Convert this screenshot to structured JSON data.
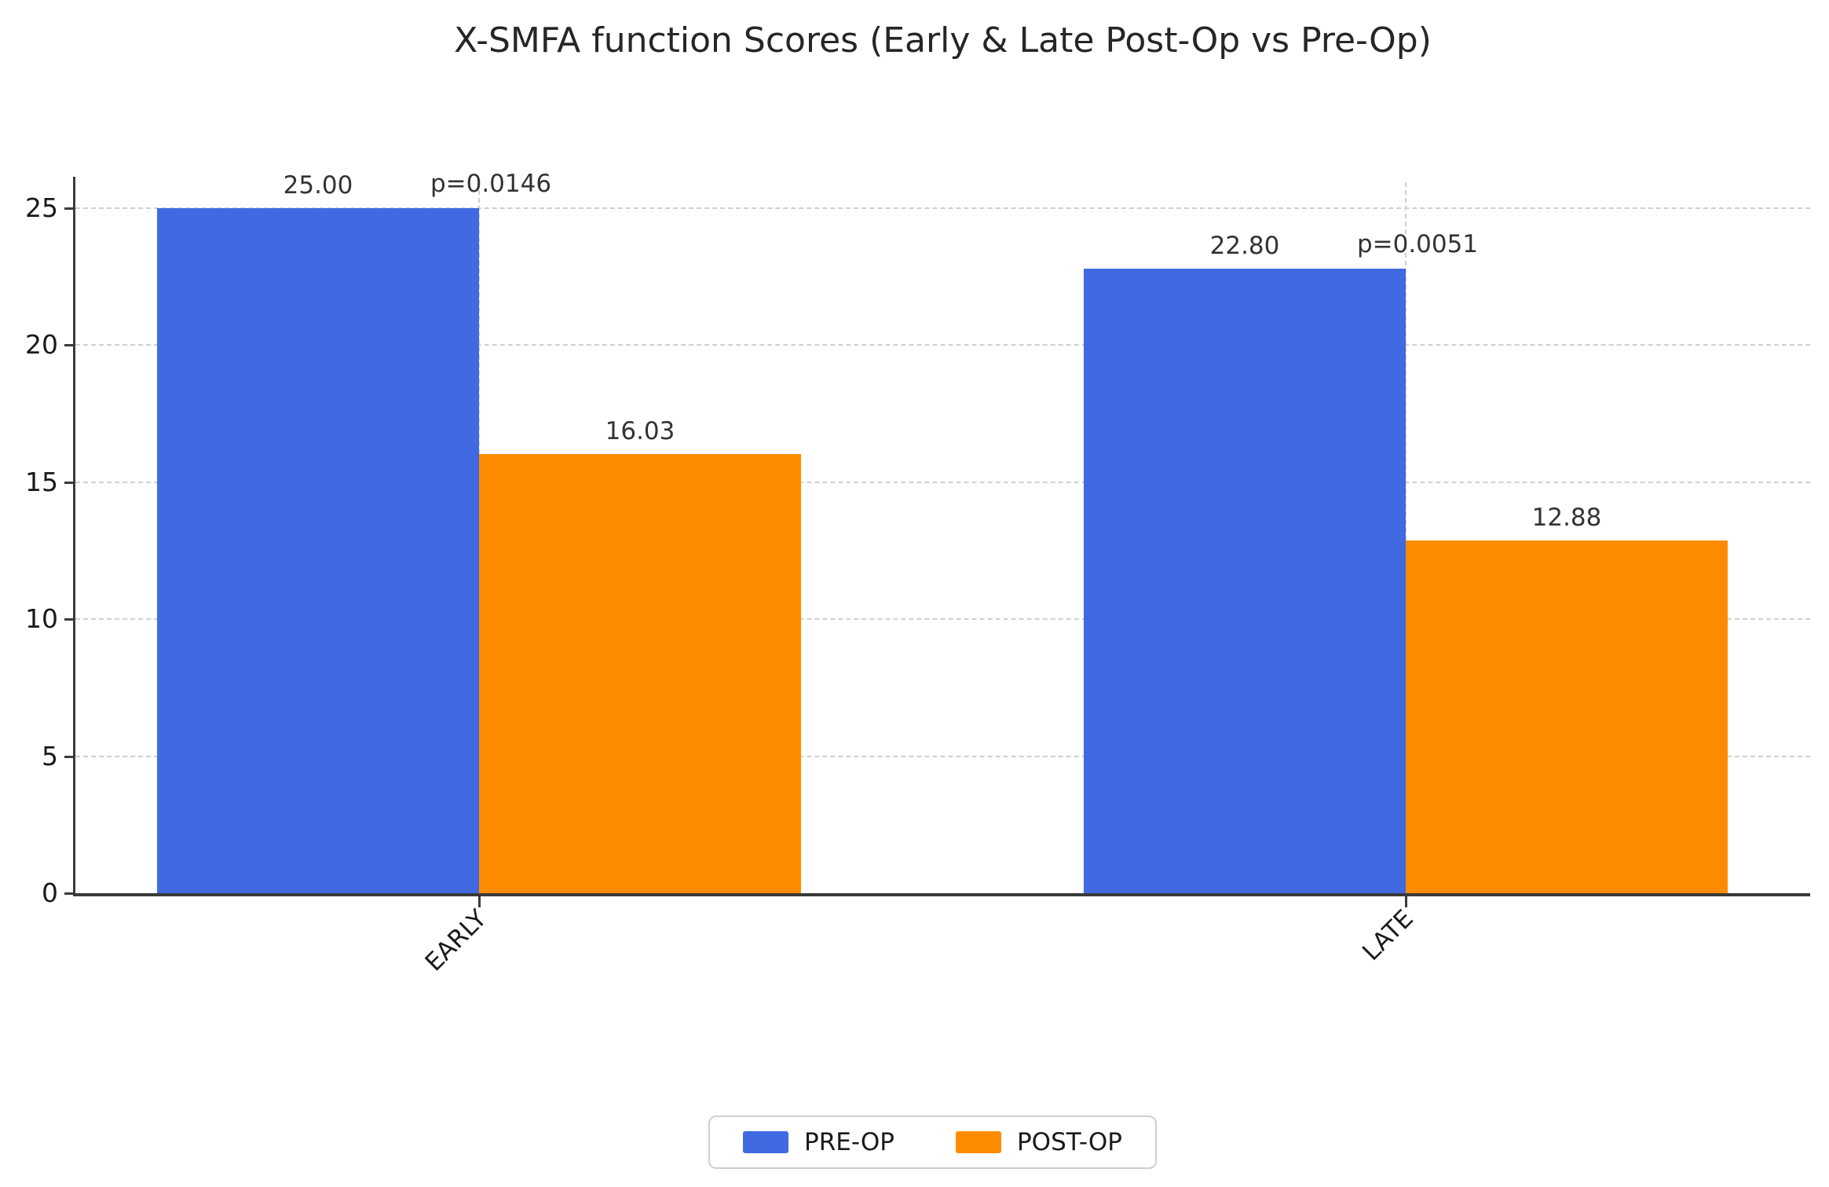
{
  "chart_data": {
    "type": "bar",
    "title": "X-SMFA function Scores (Early & Late Post-Op vs Pre-Op)",
    "categories": [
      "EARLY",
      "LATE"
    ],
    "series": [
      {
        "name": "PRE-OP",
        "color": "#4169E1",
        "values": [
          25.0,
          22.8
        ],
        "labels": [
          "25.00",
          "22.80"
        ]
      },
      {
        "name": "POST-OP",
        "color": "#FF8C00",
        "values": [
          16.03,
          12.88
        ],
        "labels": [
          "16.03",
          "12.88"
        ]
      }
    ],
    "annotations": [
      {
        "category": "EARLY",
        "text": "p=0.0146"
      },
      {
        "category": "LATE",
        "text": "p=0.0051"
      }
    ],
    "xlabel": "",
    "ylabel": "",
    "ylim": [
      0,
      26
    ],
    "yticks": [
      0,
      5,
      10,
      15,
      20,
      25
    ],
    "ytick_labels": [
      "0",
      "5",
      "10",
      "15",
      "20",
      "25"
    ],
    "grid": "dashed horizontal lines at yticks and dashed vertical lines at category ticks",
    "legend_position": "bottom-center",
    "colors": {
      "pre_op": "#4169E1",
      "post_op": "#FF8C00",
      "gridline": "#cfcfcf",
      "spine": "#3a3a3a",
      "text": "#262626"
    }
  }
}
